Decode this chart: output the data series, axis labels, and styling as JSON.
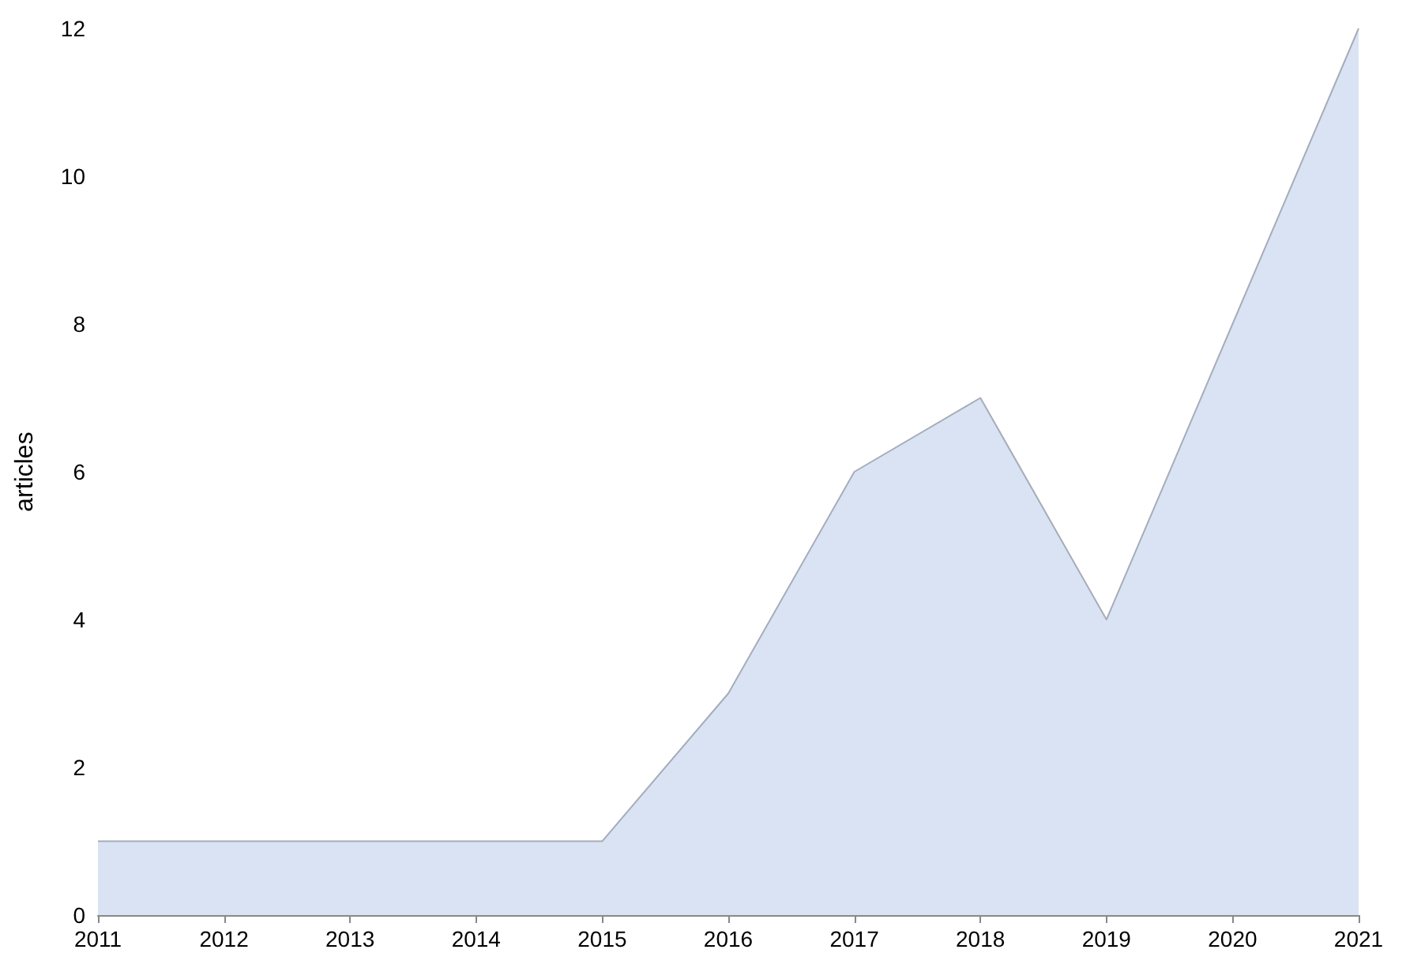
{
  "chart_data": {
    "type": "area",
    "ylabel": "articles",
    "categories": [
      "2011",
      "2012",
      "2013",
      "2014",
      "2015",
      "2016",
      "2017",
      "2018",
      "2019",
      "2020",
      "2021"
    ],
    "series": [
      {
        "color": "#dae3f3",
        "values": [
          1,
          1,
          1,
          1,
          1,
          3,
          6,
          7,
          4,
          8,
          12
        ]
      }
    ],
    "ylim": [
      0,
      12
    ],
    "yticks": [
      0,
      2,
      4,
      6,
      8,
      10,
      12
    ]
  }
}
